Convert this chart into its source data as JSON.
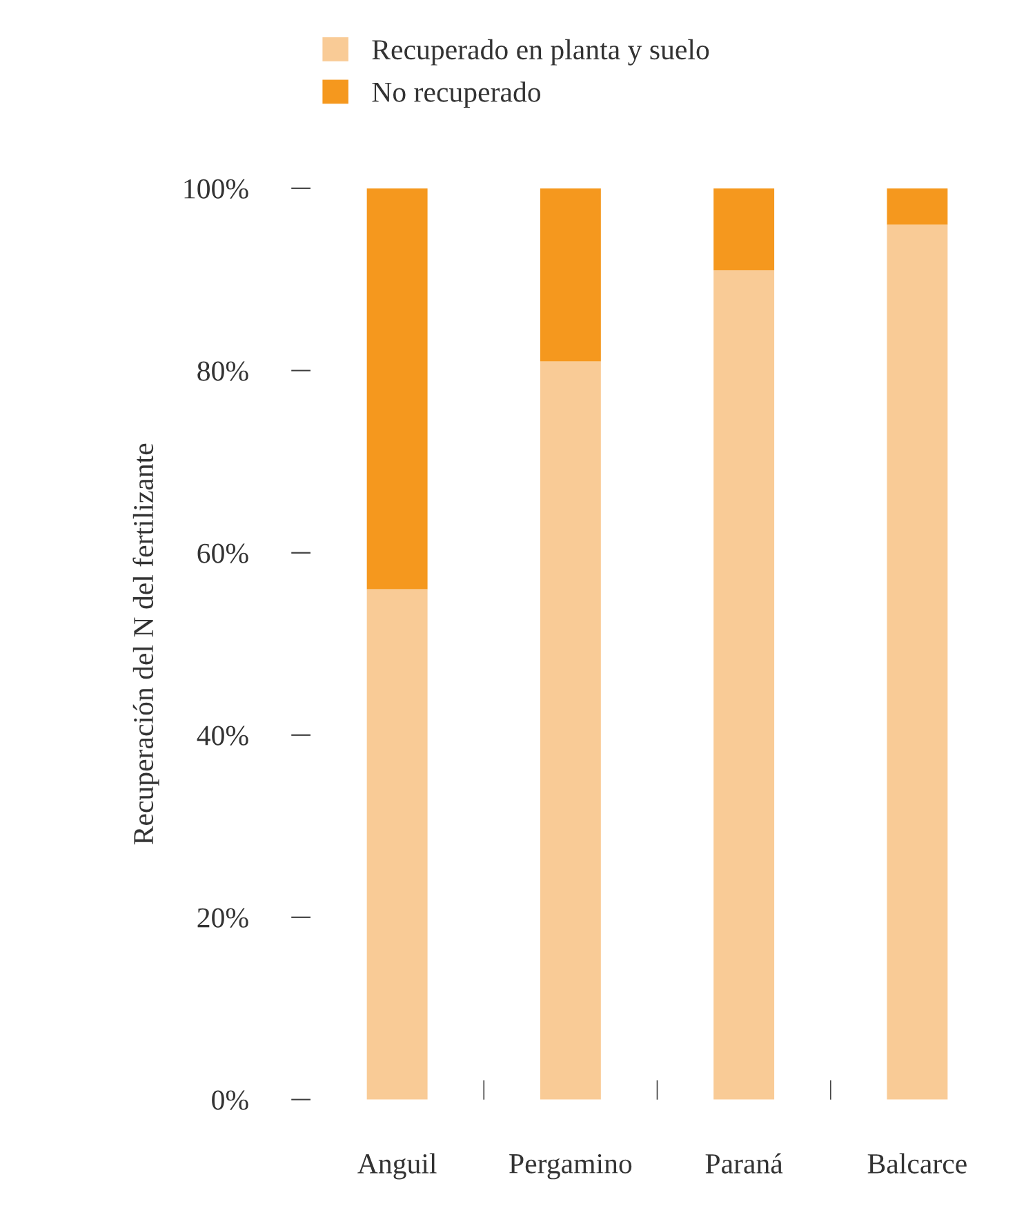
{
  "chart_data": {
    "type": "bar",
    "stacked": true,
    "ylabel": "Recuperación del N del fertilizante",
    "categories": [
      "Anguil",
      "Pergamino",
      "Paraná",
      "Balcarce"
    ],
    "series": [
      {
        "name": "Recuperado en planta y suelo",
        "color": "#f9cb96",
        "values": [
          56,
          81,
          91,
          96
        ]
      },
      {
        "name": "No recuperado",
        "color": "#f5981e",
        "values": [
          44,
          19,
          9,
          4
        ]
      }
    ],
    "ylim": [
      0,
      100
    ],
    "yticks": [
      {
        "value": 0,
        "label": "0%"
      },
      {
        "value": 20,
        "label": "20%"
      },
      {
        "value": 40,
        "label": "40%"
      },
      {
        "value": 60,
        "label": "60%"
      },
      {
        "value": 80,
        "label": "80%"
      },
      {
        "value": 100,
        "label": "100%"
      }
    ],
    "legend": "top",
    "grid": false
  }
}
